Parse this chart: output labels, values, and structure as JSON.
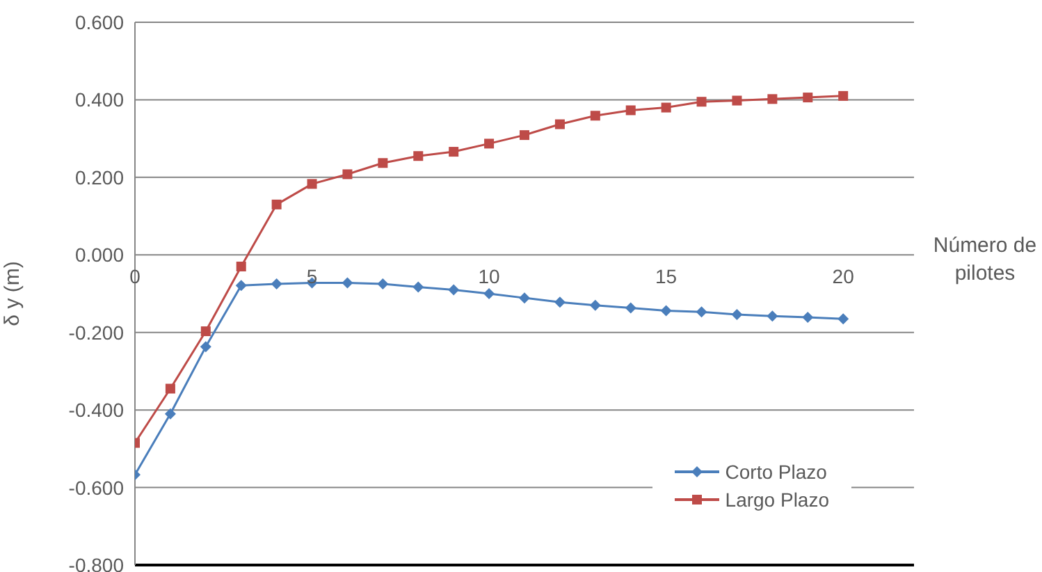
{
  "chart_data": {
    "type": "line",
    "ylabel": "δ y (m)",
    "xlabel": "Número de pilotes",
    "x": [
      0,
      1,
      2,
      3,
      4,
      5,
      6,
      7,
      8,
      9,
      10,
      11,
      12,
      13,
      14,
      15,
      16,
      17,
      18,
      19,
      20
    ],
    "xlim": [
      0,
      22
    ],
    "xticks": [
      0,
      5,
      10,
      15,
      20
    ],
    "ylim": [
      -0.8,
      0.6
    ],
    "yticks": [
      {
        "value": -0.8,
        "label": "-0.800"
      },
      {
        "value": -0.6,
        "label": "-0.600"
      },
      {
        "value": -0.4,
        "label": "-0.400"
      },
      {
        "value": -0.2,
        "label": "-0.200"
      },
      {
        "value": 0,
        "label": "0.000"
      },
      {
        "value": 0.2,
        "label": "0.200"
      },
      {
        "value": 0.4,
        "label": "0.400"
      },
      {
        "value": 0.6,
        "label": "0.600"
      }
    ],
    "grid": "y",
    "legend": "bottom right",
    "line_style": "solid",
    "series": [
      {
        "name": "Corto Plazo",
        "color": "#4a7ebb",
        "marker": "diamond",
        "values": [
          -0.567,
          -0.41,
          -0.237,
          -0.079,
          -0.075,
          -0.072,
          -0.072,
          -0.075,
          -0.083,
          -0.09,
          -0.1,
          -0.111,
          -0.122,
          -0.13,
          -0.137,
          -0.144,
          -0.147,
          -0.154,
          -0.158,
          -0.161,
          -0.165
        ]
      },
      {
        "name": "Largo Plazo",
        "color": "#be4b48",
        "marker": "square",
        "values": [
          -0.485,
          -0.345,
          -0.197,
          -0.03,
          0.13,
          0.183,
          0.208,
          0.237,
          0.255,
          0.266,
          0.287,
          0.309,
          0.337,
          0.359,
          0.373,
          0.38,
          0.395,
          0.398,
          0.402,
          0.406,
          0.41
        ]
      }
    ]
  }
}
